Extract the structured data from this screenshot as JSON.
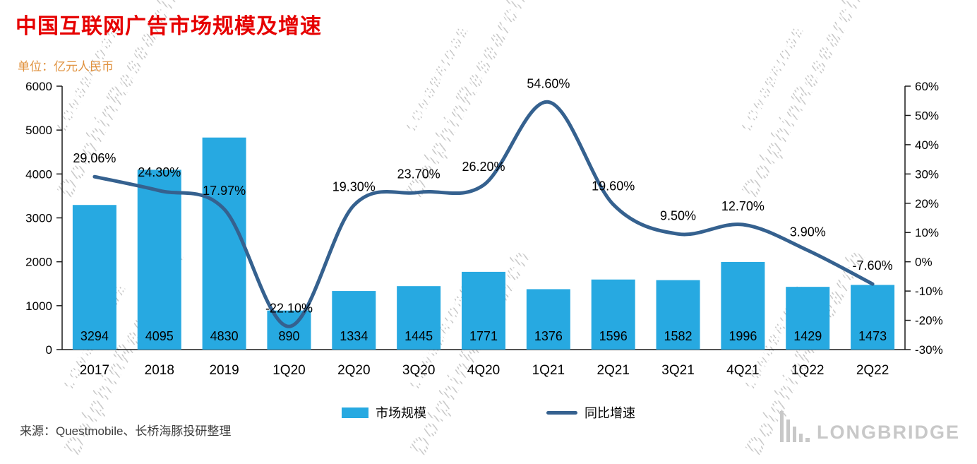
{
  "title": "中国互联网广告市场规模及增速",
  "unit_label": "单位：亿元人民币",
  "source": "来源：Questmobile、长桥海豚投研整理",
  "watermark": {
    "line1": "LONGBRIDGE",
    "line2": "DolphinResearch"
  },
  "logo": {
    "text": "LONGBRIDGE"
  },
  "colors": {
    "title": "#e60000",
    "unit_label": "#e0923f",
    "bar": "#27a9e1",
    "line": "#35618f",
    "axis": "#1a1a1a",
    "label_text": "#000000",
    "logo": "#c8c8c8"
  },
  "legend": [
    {
      "label": "市场规模",
      "type": "bar",
      "color": "#27a9e1"
    },
    {
      "label": "同比增速",
      "type": "line",
      "color": "#35618f"
    }
  ],
  "chart_data": {
    "type": "bar+line combo",
    "title": "中国互联网广告市场规模及增速",
    "unit": "亿元人民币",
    "categories": [
      "2017",
      "2018",
      "2019",
      "1Q20",
      "2Q20",
      "3Q20",
      "4Q20",
      "1Q21",
      "2Q21",
      "3Q21",
      "4Q21",
      "1Q22",
      "2Q22"
    ],
    "series": [
      {
        "name": "市场规模",
        "type": "bar",
        "axis": "left",
        "color": "#27a9e1",
        "values": [
          3294,
          4095,
          4830,
          890,
          1334,
          1445,
          1771,
          1376,
          1596,
          1582,
          1996,
          1429,
          1473
        ],
        "labels": [
          "3294",
          "4095",
          "4830",
          "890",
          "1334",
          "1445",
          "1771",
          "1376",
          "1596",
          "1582",
          "1996",
          "1429",
          "1473"
        ]
      },
      {
        "name": "同比增速",
        "type": "line",
        "axis": "right",
        "color": "#35618f",
        "values": [
          29.06,
          24.3,
          17.97,
          -22.1,
          19.3,
          23.7,
          26.2,
          54.6,
          19.6,
          9.5,
          12.7,
          3.9,
          -7.6
        ],
        "labels": [
          "29.06%",
          "24.30%",
          "17.97%",
          "-22.10%",
          "19.30%",
          "23.70%",
          "26.20%",
          "54.60%",
          "19.60%",
          "9.50%",
          "12.70%",
          "3.90%",
          "-7.60%"
        ]
      }
    ],
    "left_axis": {
      "min": 0,
      "max": 6000,
      "ticks": [
        0,
        1000,
        2000,
        3000,
        4000,
        5000,
        6000
      ]
    },
    "right_axis": {
      "min": -30,
      "max": 60,
      "tick_values": [
        -30,
        -20,
        -10,
        0,
        10,
        20,
        30,
        40,
        50,
        60
      ],
      "tick_labels": [
        "-30%",
        "-20%",
        "-10%",
        "0%",
        "10%",
        "20%",
        "30%",
        "40%",
        "50%",
        "60%"
      ]
    },
    "grid": false,
    "legend_position": "bottom"
  }
}
